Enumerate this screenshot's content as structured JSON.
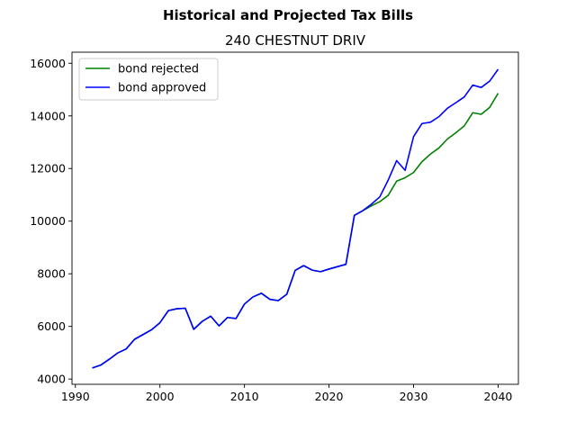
{
  "chart_data": {
    "type": "line",
    "suptitle": "Historical and Projected Tax Bills",
    "title": "240 CHESTNUT DRIV",
    "xlabel": "",
    "ylabel": "",
    "xlim": [
      1989.6,
      2042.4
    ],
    "ylim": [
      3800,
      16420
    ],
    "xticks": [
      1990,
      2000,
      2010,
      2020,
      2030,
      2040
    ],
    "yticks": [
      4000,
      6000,
      8000,
      10000,
      12000,
      14000,
      16000
    ],
    "grid": false,
    "legend_position": "upper-left",
    "x": [
      1992,
      1993,
      1994,
      1995,
      1996,
      1997,
      1998,
      1999,
      2000,
      2001,
      2002,
      2003,
      2004,
      2005,
      2006,
      2007,
      2008,
      2009,
      2010,
      2011,
      2012,
      2013,
      2014,
      2015,
      2016,
      2017,
      2018,
      2019,
      2020,
      2021,
      2022,
      2023,
      2024,
      2025,
      2026,
      2027,
      2028,
      2029,
      2030,
      2031,
      2032,
      2033,
      2034,
      2035,
      2036,
      2037,
      2038,
      2039,
      2040
    ],
    "series": [
      {
        "name": "bond rejected",
        "color": "#008000",
        "values": [
          4420,
          4530,
          4750,
          4990,
          5140,
          5510,
          5690,
          5870,
          6140,
          6600,
          6670,
          6690,
          5890,
          6190,
          6390,
          6020,
          6340,
          6300,
          6850,
          7120,
          7260,
          7030,
          6980,
          7220,
          8130,
          8310,
          8140,
          8080,
          8180,
          8270,
          8360,
          10220,
          10400,
          10580,
          10740,
          10980,
          11520,
          11650,
          11850,
          12260,
          12550,
          12780,
          13120,
          13360,
          13620,
          14120,
          14060,
          14320,
          14860
        ]
      },
      {
        "name": "bond approved",
        "color": "#0000ff",
        "values": [
          4420,
          4530,
          4750,
          4990,
          5140,
          5510,
          5690,
          5870,
          6140,
          6600,
          6670,
          6690,
          5890,
          6190,
          6390,
          6020,
          6340,
          6300,
          6850,
          7120,
          7260,
          7030,
          6980,
          7220,
          8130,
          8310,
          8140,
          8080,
          8180,
          8270,
          8360,
          10220,
          10400,
          10640,
          10920,
          11560,
          12300,
          11930,
          13210,
          13710,
          13760,
          13970,
          14290,
          14500,
          14720,
          15170,
          15080,
          15320,
          15770
        ]
      }
    ]
  }
}
